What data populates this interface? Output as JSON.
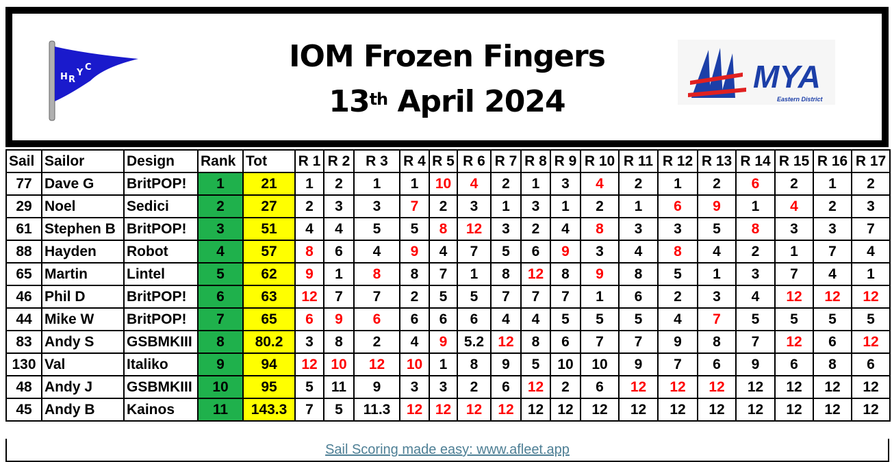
{
  "header": {
    "title_line1": "IOM Frozen Fingers",
    "title_day": "13",
    "title_day_suffix": "th",
    "title_rest": " April 2024",
    "left_logo_text": "HRYC",
    "right_logo_text": "MYA",
    "right_logo_subtext": "Eastern District"
  },
  "colors": {
    "rank_bg": "#1fb14c",
    "total_bg": "#ffff00",
    "discard_text": "#ff0000",
    "link": "#4e7f95",
    "flag": "#1a1acc"
  },
  "table": {
    "columns": [
      "Sail",
      "Sailor",
      "Design",
      "Rank",
      "Tot",
      "R 1",
      "R 2",
      "R 3",
      "R 4",
      "R 5",
      "R 6",
      "R 7",
      "R 8",
      "R 9",
      "R 10",
      "R 11",
      "R 12",
      "R 13",
      "R 14",
      "R 15",
      "R 16",
      "R 17"
    ],
    "rows": [
      {
        "sail": "77",
        "sailor": "Dave G",
        "design": "BritPOP!",
        "rank": "1",
        "tot": "21",
        "results": [
          "1",
          "2",
          "1",
          "1",
          "10",
          "4",
          "2",
          "1",
          "3",
          "4",
          "2",
          "1",
          "2",
          "6",
          "2",
          "1",
          "2"
        ],
        "discarded": [
          5,
          6,
          10,
          14
        ]
      },
      {
        "sail": "29",
        "sailor": "Noel",
        "design": "Sedici",
        "rank": "2",
        "tot": "27",
        "results": [
          "2",
          "3",
          "3",
          "7",
          "2",
          "3",
          "1",
          "3",
          "1",
          "2",
          "1",
          "6",
          "9",
          "1",
          "4",
          "2",
          "3"
        ],
        "discarded": [
          4,
          12,
          13,
          15
        ]
      },
      {
        "sail": "61",
        "sailor": "Stephen B",
        "design": "BritPOP!",
        "rank": "3",
        "tot": "51",
        "results": [
          "4",
          "4",
          "5",
          "5",
          "8",
          "12",
          "3",
          "2",
          "4",
          "8",
          "3",
          "3",
          "5",
          "8",
          "3",
          "3",
          "7"
        ],
        "discarded": [
          5,
          6,
          10,
          14
        ]
      },
      {
        "sail": "88",
        "sailor": "Hayden",
        "design": "Robot",
        "rank": "4",
        "tot": "57",
        "results": [
          "8",
          "6",
          "4",
          "9",
          "4",
          "7",
          "5",
          "6",
          "9",
          "3",
          "4",
          "8",
          "4",
          "2",
          "1",
          "7",
          "4"
        ],
        "discarded": [
          1,
          4,
          9,
          12
        ]
      },
      {
        "sail": "65",
        "sailor": "Martin",
        "design": "Lintel",
        "rank": "5",
        "tot": "62",
        "results": [
          "9",
          "1",
          "8",
          "8",
          "7",
          "1",
          "8",
          "12",
          "8",
          "9",
          "8",
          "5",
          "1",
          "3",
          "7",
          "4",
          "1"
        ],
        "discarded": [
          1,
          3,
          8,
          10
        ]
      },
      {
        "sail": "46",
        "sailor": "Phil D",
        "design": "BritPOP!",
        "rank": "6",
        "tot": "63",
        "results": [
          "12",
          "7",
          "7",
          "2",
          "5",
          "5",
          "7",
          "7",
          "7",
          "1",
          "6",
          "2",
          "3",
          "4",
          "12",
          "12",
          "12"
        ],
        "discarded": [
          1,
          15,
          16,
          17
        ]
      },
      {
        "sail": "44",
        "sailor": "Mike W",
        "design": "BritPOP!",
        "rank": "7",
        "tot": "65",
        "results": [
          "6",
          "9",
          "6",
          "6",
          "6",
          "6",
          "4",
          "4",
          "5",
          "5",
          "5",
          "4",
          "7",
          "5",
          "5",
          "5",
          "5"
        ],
        "discarded": [
          1,
          2,
          3,
          13
        ]
      },
      {
        "sail": "83",
        "sailor": "Andy S",
        "design": "GSBMKIII",
        "rank": "8",
        "tot": "80.2",
        "results": [
          "3",
          "8",
          "2",
          "4",
          "9",
          "5.2",
          "12",
          "8",
          "6",
          "7",
          "7",
          "9",
          "8",
          "7",
          "12",
          "6",
          "12"
        ],
        "discarded": [
          5,
          7,
          15,
          17
        ]
      },
      {
        "sail": "130",
        "sailor": "Val",
        "design": "Italiko",
        "rank": "9",
        "tot": "94",
        "results": [
          "12",
          "10",
          "12",
          "10",
          "1",
          "8",
          "9",
          "5",
          "10",
          "10",
          "9",
          "7",
          "6",
          "9",
          "6",
          "8",
          "6"
        ],
        "discarded": [
          1,
          2,
          3,
          4
        ]
      },
      {
        "sail": "48",
        "sailor": "Andy J",
        "design": "GSBMKIII",
        "rank": "10",
        "tot": "95",
        "results": [
          "5",
          "11",
          "9",
          "3",
          "3",
          "2",
          "6",
          "12",
          "2",
          "6",
          "12",
          "12",
          "12",
          "12",
          "12",
          "12",
          "12"
        ],
        "discarded": [
          8,
          11,
          12,
          13
        ]
      },
      {
        "sail": "45",
        "sailor": "Andy B",
        "design": "Kainos",
        "rank": "11",
        "tot": "143.3",
        "results": [
          "7",
          "5",
          "11.3",
          "12",
          "12",
          "12",
          "12",
          "12",
          "12",
          "12",
          "12",
          "12",
          "12",
          "12",
          "12",
          "12",
          "12"
        ],
        "discarded": [
          4,
          5,
          6,
          7
        ]
      }
    ]
  },
  "footer": {
    "link_text": "Sail Scoring made easy: www.afleet.app"
  }
}
